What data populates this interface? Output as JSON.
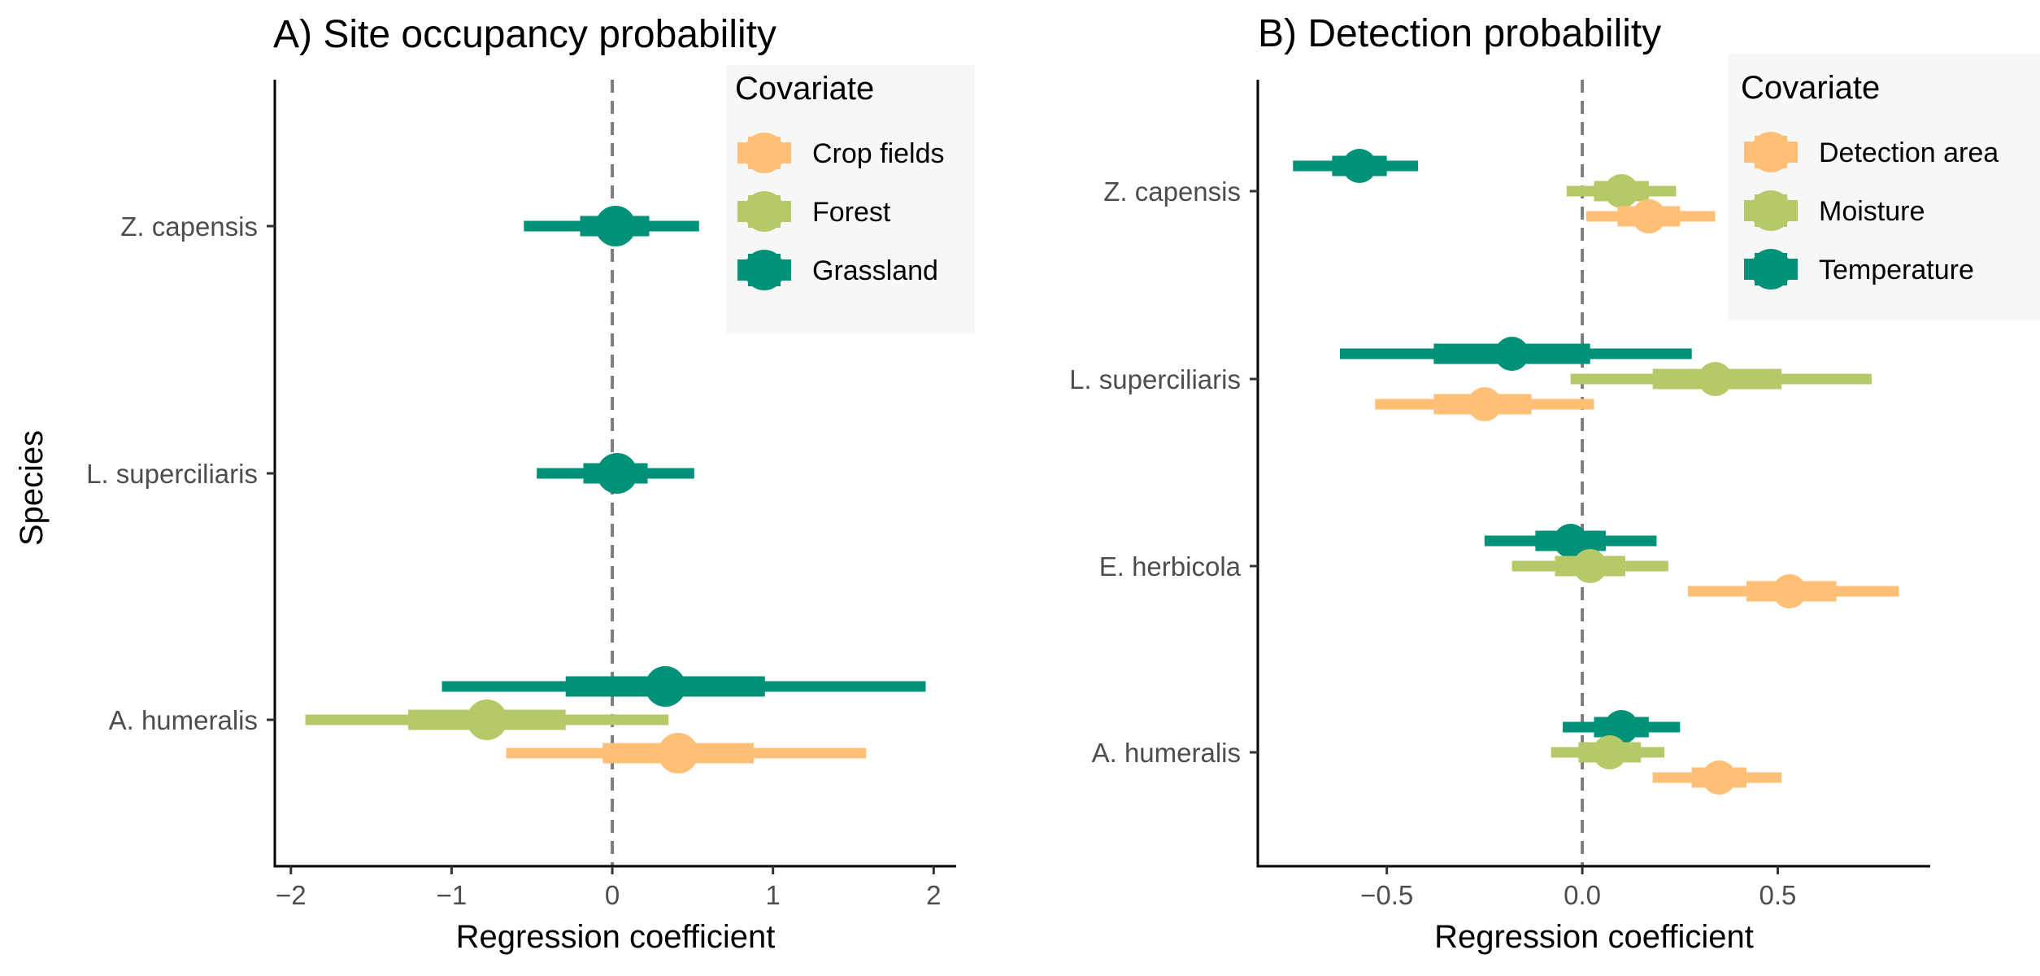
{
  "y_axis_title": "Species",
  "colors": {
    "orange": "#FEC076",
    "olive": "#B5C969",
    "teal": "#009179",
    "reference_line": "#7f7f7f",
    "legend_background": "#f7f7f7"
  },
  "chart_data": [
    {
      "type": "forest-plot",
      "title": "A) Site occupancy probability",
      "xlabel": "Regression coefficient",
      "ylabel": "Species",
      "xlim": [
        -2.1,
        2.14
      ],
      "x_ticks": [
        -2,
        -1,
        0,
        1,
        2
      ],
      "x_tick_labels": [
        "−2",
        "−1",
        "0",
        "1",
        "2"
      ],
      "reference_line": 0,
      "categories": [
        "Z. capensis",
        "L. superciliaris",
        "A. humeralis"
      ],
      "legend": {
        "title": "Covariate",
        "position": "top-right",
        "entries": [
          {
            "label": "Crop fields",
            "color": "#FEC076"
          },
          {
            "label": "Forest",
            "color": "#B5C969"
          },
          {
            "label": "Grassland",
            "color": "#009179"
          }
        ]
      },
      "series": [
        {
          "name": "Grassland",
          "color": "#009179",
          "points": [
            {
              "species": "Z. capensis",
              "estimate": 0.02,
              "inner": [
                -0.2,
                0.23
              ],
              "outer": [
                -0.55,
                0.54
              ]
            },
            {
              "species": "L. superciliaris",
              "estimate": 0.03,
              "inner": [
                -0.18,
                0.22
              ],
              "outer": [
                -0.47,
                0.51
              ]
            },
            {
              "species": "A. humeralis",
              "estimate": 0.33,
              "inner": [
                -0.29,
                0.95
              ],
              "outer": [
                -1.06,
                1.95
              ]
            }
          ]
        },
        {
          "name": "Forest",
          "color": "#B5C969",
          "points": [
            {
              "species": "A. humeralis",
              "estimate": -0.78,
              "inner": [
                -1.27,
                -0.29
              ],
              "outer": [
                -1.91,
                0.35
              ]
            }
          ]
        },
        {
          "name": "Crop fields",
          "color": "#FEC076",
          "points": [
            {
              "species": "A. humeralis",
              "estimate": 0.41,
              "inner": [
                -0.06,
                0.88
              ],
              "outer": [
                -0.66,
                1.58
              ]
            }
          ]
        }
      ]
    },
    {
      "type": "forest-plot",
      "title": "B) Detection probability",
      "xlabel": "Regression coefficient",
      "xlim": [
        -0.83,
        0.89
      ],
      "x_ticks": [
        -0.5,
        0,
        0.5
      ],
      "x_tick_labels": [
        "−0.5",
        "0.0",
        "0.5"
      ],
      "reference_line": 0,
      "categories": [
        "Z. capensis",
        "L. superciliaris",
        "E. herbicola",
        "A. humeralis"
      ],
      "legend": {
        "title": "Covariate",
        "position": "top-right",
        "entries": [
          {
            "label": "Detection area",
            "color": "#FEC076"
          },
          {
            "label": "Moisture",
            "color": "#B5C969"
          },
          {
            "label": "Temperature",
            "color": "#009179"
          }
        ]
      },
      "series": [
        {
          "name": "Temperature",
          "color": "#009179",
          "points": [
            {
              "species": "Z. capensis",
              "estimate": -0.57,
              "inner": [
                -0.64,
                -0.5
              ],
              "outer": [
                -0.74,
                -0.42
              ]
            },
            {
              "species": "L. superciliaris",
              "estimate": -0.18,
              "inner": [
                -0.38,
                0.02
              ],
              "outer": [
                -0.62,
                0.28
              ]
            },
            {
              "species": "E. herbicola",
              "estimate": -0.03,
              "inner": [
                -0.12,
                0.06
              ],
              "outer": [
                -0.25,
                0.19
              ]
            },
            {
              "species": "A. humeralis",
              "estimate": 0.1,
              "inner": [
                0.03,
                0.17
              ],
              "outer": [
                -0.05,
                0.25
              ]
            }
          ]
        },
        {
          "name": "Moisture",
          "color": "#B5C969",
          "points": [
            {
              "species": "Z. capensis",
              "estimate": 0.1,
              "inner": [
                0.03,
                0.17
              ],
              "outer": [
                -0.04,
                0.24
              ]
            },
            {
              "species": "L. superciliaris",
              "estimate": 0.34,
              "inner": [
                0.18,
                0.51
              ],
              "outer": [
                -0.03,
                0.74
              ]
            },
            {
              "species": "E. herbicola",
              "estimate": 0.02,
              "inner": [
                -0.07,
                0.11
              ],
              "outer": [
                -0.18,
                0.22
              ]
            },
            {
              "species": "A. humeralis",
              "estimate": 0.07,
              "inner": [
                -0.01,
                0.15
              ],
              "outer": [
                -0.08,
                0.21
              ]
            }
          ]
        },
        {
          "name": "Detection area",
          "color": "#FEC076",
          "points": [
            {
              "species": "Z. capensis",
              "estimate": 0.17,
              "inner": [
                0.09,
                0.25
              ],
              "outer": [
                0.01,
                0.34
              ]
            },
            {
              "species": "L. superciliaris",
              "estimate": -0.25,
              "inner": [
                -0.38,
                -0.13
              ],
              "outer": [
                -0.53,
                0.03
              ]
            },
            {
              "species": "E. herbicola",
              "estimate": 0.53,
              "inner": [
                0.42,
                0.65
              ],
              "outer": [
                0.27,
                0.81
              ]
            },
            {
              "species": "A. humeralis",
              "estimate": 0.35,
              "inner": [
                0.28,
                0.42
              ],
              "outer": [
                0.18,
                0.51
              ]
            }
          ]
        }
      ]
    }
  ]
}
